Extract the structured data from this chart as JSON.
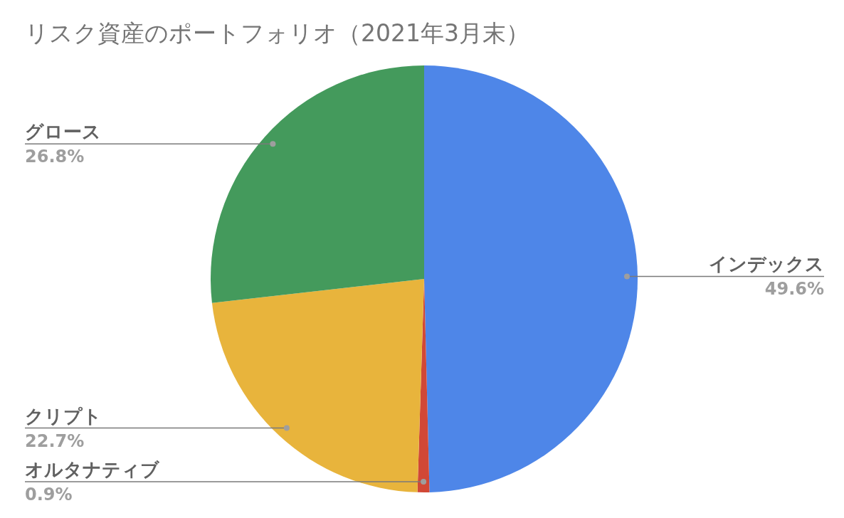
{
  "chart_data": {
    "type": "pie",
    "title": "リスク資産のポートフォリオ（2021年3月末）",
    "categories": [
      "インデックス",
      "オルタナティブ",
      "クリプト",
      "グロース"
    ],
    "values": [
      49.6,
      0.9,
      22.7,
      26.8
    ],
    "colors": [
      "#4e86e8",
      "#d14836",
      "#e8b43c",
      "#449a5c"
    ],
    "value_labels": [
      "49.6%",
      "0.9%",
      "22.7%",
      "26.8%"
    ]
  }
}
